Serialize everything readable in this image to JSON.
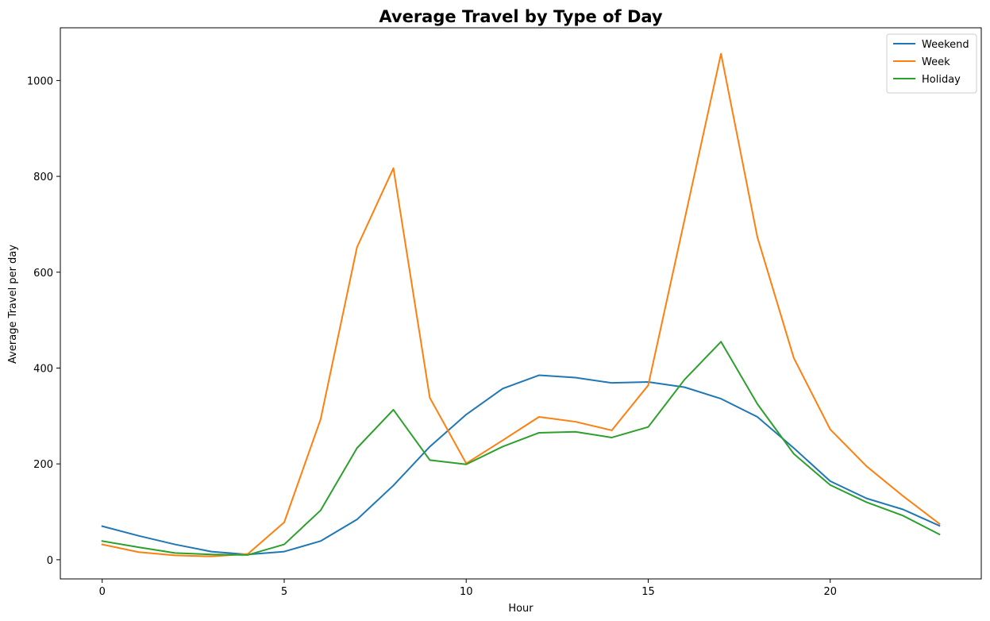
{
  "chart_data": {
    "type": "line",
    "title": "Average Travel by Type of Day",
    "xlabel": "Hour",
    "ylabel": "Average Travel per day",
    "xlim": [
      -1.15,
      24.15
    ],
    "ylim": [
      -40,
      1110
    ],
    "x_ticks": [
      0,
      5,
      10,
      15,
      20
    ],
    "y_ticks": [
      0,
      200,
      400,
      600,
      800,
      1000
    ],
    "grid": false,
    "legend_position": "top-right",
    "x": [
      0,
      1,
      2,
      3,
      4,
      5,
      6,
      7,
      8,
      9,
      10,
      11,
      12,
      13,
      14,
      15,
      16,
      17,
      18,
      19,
      20,
      21,
      22,
      23
    ],
    "series": [
      {
        "name": "Weekend",
        "color": "#1f77b4",
        "values": [
          70,
          50,
          32,
          17,
          11,
          17,
          39,
          84,
          155,
          236,
          303,
          357,
          385,
          380,
          369,
          371,
          360,
          336,
          298,
          233,
          164,
          128,
          105,
          71
        ]
      },
      {
        "name": "Week",
        "color": "#ff7f0e",
        "values": [
          32,
          16,
          9,
          7,
          12,
          78,
          293,
          652,
          817,
          338,
          201,
          249,
          298,
          288,
          270,
          364,
          710,
          1056,
          673,
          421,
          272,
          195,
          133,
          75
        ]
      },
      {
        "name": "Holiday",
        "color": "#2ca02c",
        "values": [
          39,
          26,
          14,
          11,
          10,
          32,
          103,
          233,
          313,
          208,
          199,
          236,
          265,
          267,
          255,
          277,
          376,
          455,
          325,
          221,
          156,
          120,
          92,
          53
        ]
      }
    ]
  }
}
